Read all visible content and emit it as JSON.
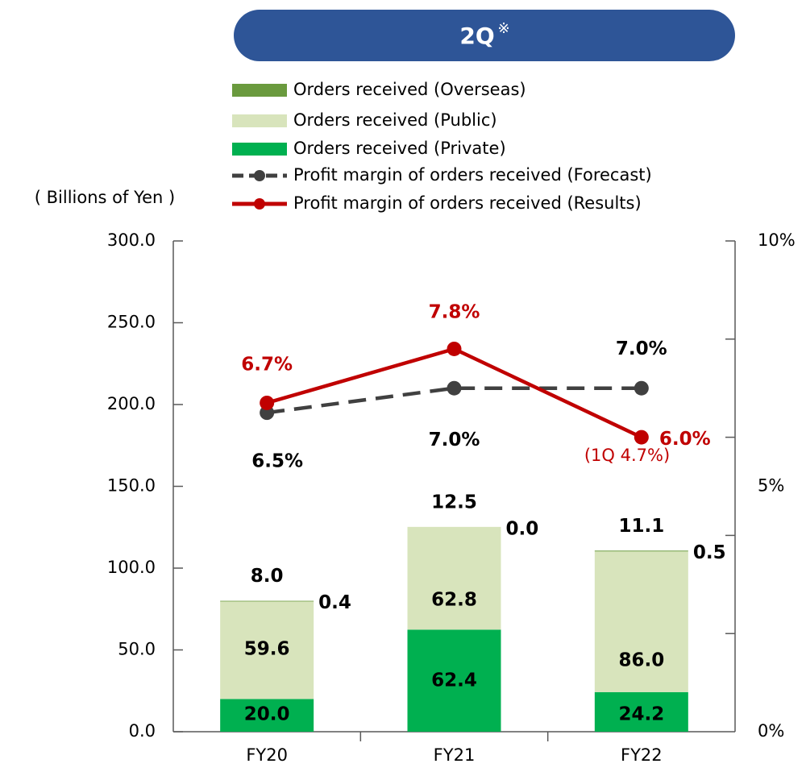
{
  "chart_data": {
    "type": "bar",
    "title": "2Q",
    "title_mark": "※",
    "ylabel": "( Billions of Yen )",
    "categories": [
      "FY20",
      "FY21",
      "FY22"
    ],
    "ylim": [
      0,
      300
    ],
    "yticks": [
      {
        "value": 0,
        "label": "0.0"
      },
      {
        "value": 50,
        "label": "50.0"
      },
      {
        "value": 100,
        "label": "100.0"
      },
      {
        "value": 150,
        "label": "150.0"
      },
      {
        "value": 200,
        "label": "200.0"
      },
      {
        "value": 250,
        "label": "250.0"
      },
      {
        "value": 300,
        "label": "300.0"
      }
    ],
    "y2lim": [
      0,
      10
    ],
    "y2ticks": [
      {
        "value": 0,
        "label": "0%"
      },
      {
        "value": 5,
        "label": "5%"
      },
      {
        "value": 10,
        "label": "10%"
      }
    ],
    "y2_minor_ticks": [
      2,
      4,
      6,
      8
    ],
    "series": [
      {
        "name": "Orders received (Private)",
        "color": "#00b050",
        "values": [
          20.0,
          62.4,
          24.2
        ],
        "value_labels": [
          "20.0",
          "62.4",
          "24.2"
        ]
      },
      {
        "name": "Orders received (Public)",
        "color": "#d8e4bc",
        "values": [
          59.6,
          62.8,
          86.0
        ],
        "value_labels": [
          "59.6",
          "62.8",
          "86.0"
        ]
      },
      {
        "name": "Orders received (Overseas)",
        "color": "#6a9a3e",
        "values": [
          0.4,
          0.0,
          0.5
        ],
        "value_labels": [
          "0.4",
          "0.0",
          "0.5"
        ]
      },
      {
        "name": "Profit margin of orders received (Forecast)",
        "type": "line",
        "axis": "y2",
        "color": "#404040",
        "dashed": true,
        "values": [
          6.5,
          7.0,
          7.0
        ],
        "value_labels": [
          "6.5%",
          "7.0%",
          "7.0%"
        ]
      },
      {
        "name": "Profit margin of orders received (Results)",
        "type": "line",
        "axis": "y2",
        "color": "#c00000",
        "dashed": false,
        "values": [
          6.7,
          7.8,
          6.0
        ],
        "value_labels": [
          "6.7%",
          "7.8%",
          "6.0%"
        ]
      }
    ],
    "bar_top_labels": [
      "8.0",
      "12.5",
      "11.1"
    ],
    "annotation": "(1Q 4.7%)"
  }
}
